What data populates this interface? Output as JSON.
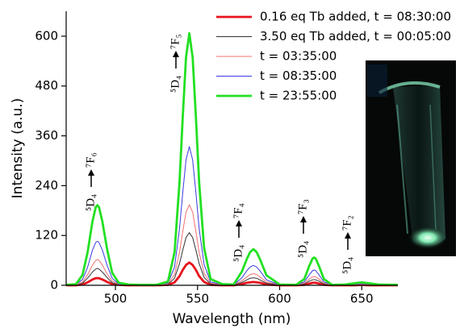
{
  "chart_data": {
    "type": "line",
    "xlabel": "Wavelength (nm)",
    "ylabel": "Intensity (a.u.)",
    "x": [
      470,
      476,
      480,
      483,
      486,
      488,
      489,
      490,
      492,
      495,
      498,
      502,
      508,
      515,
      525,
      532,
      536,
      539,
      541,
      543,
      545,
      547,
      549,
      551,
      554,
      558,
      565,
      572,
      577,
      580,
      582,
      584,
      586,
      588,
      592,
      600,
      610,
      615,
      618,
      620,
      621,
      622,
      624,
      627,
      632,
      640,
      646,
      650,
      654,
      660,
      672
    ],
    "series": [
      {
        "name": "0.16 eq Tb added, t = 08:30:00",
        "color": "#e8121c",
        "values": [
          0,
          0,
          2,
          7,
          14,
          17,
          17,
          17,
          14,
          8,
          3,
          1,
          0,
          0,
          0,
          1,
          7,
          22,
          37,
          49,
          55,
          49,
          37,
          22,
          8,
          1,
          0,
          0,
          3,
          6,
          7,
          8,
          7,
          6,
          2,
          0,
          0,
          1,
          4,
          6,
          6,
          6,
          4,
          1,
          0,
          0,
          0,
          1,
          0,
          0,
          0
        ]
      },
      {
        "name": "3.50 eq Tb added, t = 00:05:00",
        "color": "#333333",
        "values": [
          0,
          1,
          5,
          17,
          32,
          39,
          41,
          39,
          32,
          18,
          6,
          1,
          0,
          0,
          0,
          2,
          17,
          52,
          85,
          115,
          127,
          115,
          85,
          52,
          19,
          3,
          1,
          0,
          7,
          13,
          17,
          18,
          17,
          13,
          5,
          0,
          0,
          3,
          10,
          13,
          14,
          13,
          10,
          3,
          0,
          0,
          1,
          1,
          1,
          0,
          0
        ]
      },
      {
        "name": "t = 03:35:00",
        "color": "#f07070",
        "values": [
          0,
          1,
          8,
          25,
          49,
          60,
          62,
          60,
          49,
          27,
          10,
          2,
          1,
          0,
          0,
          3,
          26,
          79,
          130,
          176,
          194,
          176,
          130,
          79,
          29,
          5,
          1,
          1,
          11,
          20,
          26,
          28,
          26,
          20,
          8,
          1,
          0,
          5,
          15,
          20,
          21,
          20,
          15,
          5,
          0,
          1,
          2,
          2,
          2,
          1,
          0
        ]
      },
      {
        "name": "t = 08:35:00",
        "color": "#3a3ae0",
        "values": [
          1,
          2,
          14,
          43,
          85,
          103,
          106,
          103,
          85,
          47,
          17,
          3,
          1,
          1,
          1,
          5,
          44,
          136,
          224,
          302,
          334,
          302,
          224,
          136,
          50,
          8,
          2,
          1,
          18,
          35,
          44,
          48,
          44,
          35,
          13,
          1,
          1,
          8,
          25,
          35,
          37,
          35,
          25,
          8,
          1,
          1,
          3,
          4,
          3,
          1,
          1
        ]
      },
      {
        "name": "t = 23:55:00",
        "color": "#22e022",
        "values": [
          1,
          3,
          25,
          79,
          154,
          188,
          193,
          188,
          154,
          85,
          30,
          6,
          2,
          1,
          1,
          9,
          80,
          247,
          407,
          549,
          607,
          549,
          407,
          247,
          90,
          15,
          3,
          2,
          33,
          63,
          80,
          87,
          80,
          63,
          24,
          2,
          1,
          15,
          46,
          64,
          67,
          64,
          46,
          15,
          1,
          2,
          5,
          7,
          5,
          2,
          1
        ]
      }
    ],
    "annotations": [
      {
        "lower": "⁵D₄",
        "upper": "⁷F₆"
      },
      {
        "lower": "⁵D₄",
        "upper": "⁷F₅"
      },
      {
        "lower": "⁵D₄",
        "upper": "⁷F₄"
      },
      {
        "lower": "⁵D₄",
        "upper": "⁷F₃"
      },
      {
        "lower": "⁵D₄",
        "upper": "⁷F₂"
      }
    ],
    "xlim": [
      470,
      672
    ],
    "xticks": [
      500,
      550,
      600,
      650
    ],
    "ylim": [
      0,
      660
    ],
    "yticks": [
      0,
      120,
      240,
      360,
      480,
      600
    ],
    "legend": "upper right"
  }
}
